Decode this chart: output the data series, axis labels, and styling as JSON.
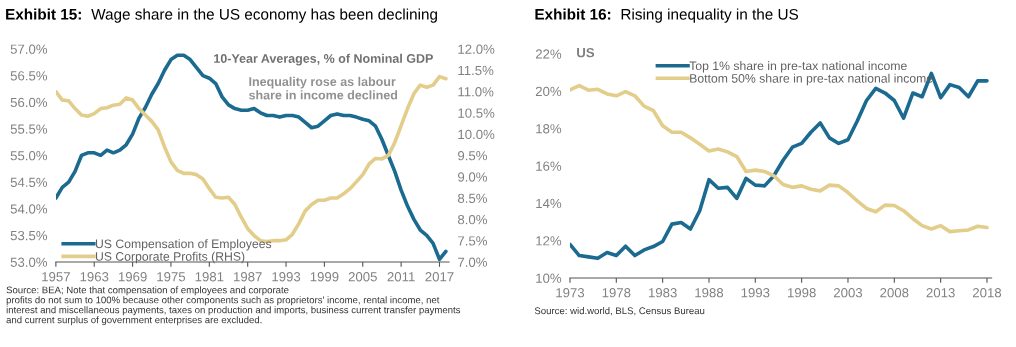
{
  "chart_data": [
    {
      "type": "line",
      "title": "Exhibit 15:  Wage share in the US economy has been declining",
      "annotations": [
        "10-Year Averages, % of Nominal GDP",
        "Inequality rose as labour\nshare in income declined",
        "Source: BEA; Note that compensation of employees and corporate\nprofits do not sum to 100% because other components such as proprietors' income, rental income, net\ninterest and miscellaneous payments, taxes on production and imports, business current transfer payments\nand current surplus of government enterprises are excluded."
      ],
      "x": [
        1957,
        1958,
        1959,
        1960,
        1961,
        1962,
        1963,
        1964,
        1965,
        1966,
        1967,
        1968,
        1969,
        1970,
        1971,
        1972,
        1973,
        1974,
        1975,
        1976,
        1977,
        1978,
        1979,
        1980,
        1981,
        1982,
        1983,
        1984,
        1985,
        1986,
        1987,
        1988,
        1989,
        1990,
        1991,
        1992,
        1993,
        1994,
        1995,
        1996,
        1997,
        1998,
        1999,
        2000,
        2001,
        2002,
        2003,
        2004,
        2005,
        2006,
        2007,
        2008,
        2009,
        2010,
        2011,
        2012,
        2013,
        2014,
        2015,
        2016,
        2017,
        2018
      ],
      "series": [
        {
          "name": "US Compensation of Employees",
          "color": "#1b6a90",
          "values": [
            54.2,
            54.4,
            54.5,
            54.7,
            55.0,
            55.05,
            55.05,
            55.0,
            55.1,
            55.05,
            55.1,
            55.2,
            55.4,
            55.7,
            55.9,
            56.15,
            56.35,
            56.6,
            56.8,
            56.88,
            56.88,
            56.8,
            56.65,
            56.5,
            56.45,
            56.35,
            56.1,
            55.95,
            55.88,
            55.85,
            55.85,
            55.88,
            55.8,
            55.75,
            55.75,
            55.72,
            55.75,
            55.75,
            55.72,
            55.62,
            55.52,
            55.55,
            55.65,
            55.75,
            55.78,
            55.75,
            55.75,
            55.72,
            55.68,
            55.65,
            55.55,
            55.3,
            55.0,
            54.7,
            54.35,
            54.05,
            53.8,
            53.6,
            53.5,
            53.35,
            53.05,
            53.2
          ]
        },
        {
          "name": "US Corporate Profits (RHS)",
          "color": "#e3cd8a",
          "axis": "y2",
          "values": [
            11.0,
            10.8,
            10.78,
            10.6,
            10.45,
            10.42,
            10.48,
            10.6,
            10.62,
            10.68,
            10.7,
            10.85,
            10.8,
            10.6,
            10.45,
            10.3,
            10.1,
            9.7,
            9.35,
            9.15,
            9.08,
            9.08,
            9.05,
            8.95,
            8.72,
            8.52,
            8.5,
            8.52,
            8.35,
            8.05,
            7.78,
            7.62,
            7.5,
            7.48,
            7.5,
            7.5,
            7.52,
            7.65,
            7.9,
            8.2,
            8.35,
            8.45,
            8.45,
            8.5,
            8.5,
            8.6,
            8.72,
            8.88,
            9.05,
            9.3,
            9.43,
            9.42,
            9.5,
            9.8,
            10.2,
            10.6,
            10.95,
            11.15,
            11.1,
            11.15,
            11.35,
            11.3
          ]
        }
      ],
      "xlim": [
        1957,
        2018.5
      ],
      "xticks": [
        1957,
        1963,
        1969,
        1975,
        1981,
        1987,
        1993,
        1999,
        2005,
        2011,
        2017
      ],
      "ylim": [
        53.0,
        57.0
      ],
      "yticks": [
        {
          "value": 53.0,
          "label": "53.0%"
        },
        {
          "value": 53.5,
          "label": "53.5%"
        },
        {
          "value": 54.0,
          "label": "54.0%"
        },
        {
          "value": 54.5,
          "label": "54.5%"
        },
        {
          "value": 55.0,
          "label": "55.0%"
        },
        {
          "value": 55.5,
          "label": "55.5%"
        },
        {
          "value": 56.0,
          "label": "56.0%"
        },
        {
          "value": 56.5,
          "label": "56.5%"
        },
        {
          "value": 57.0,
          "label": "57.0%"
        }
      ],
      "y2lim": [
        7.0,
        12.0
      ],
      "y2ticks": [
        {
          "value": 7.0,
          "label": "7.0%"
        },
        {
          "value": 7.5,
          "label": "7.5%"
        },
        {
          "value": 8.0,
          "label": "8.0%"
        },
        {
          "value": 8.5,
          "label": "8.5%"
        },
        {
          "value": 9.0,
          "label": "9.0%"
        },
        {
          "value": 9.5,
          "label": "9.5%"
        },
        {
          "value": 10.0,
          "label": "10.0%"
        },
        {
          "value": 10.5,
          "label": "10.5%"
        },
        {
          "value": 11.0,
          "label": "11.0%"
        },
        {
          "value": 11.5,
          "label": "11.5%"
        },
        {
          "value": 12.0,
          "label": "12.0%"
        }
      ],
      "grid": false,
      "legend": "bottom left"
    },
    {
      "type": "line",
      "title": "Exhibit 16:  Rising inequality in the US",
      "annotations": [
        "US",
        "Source: wid.world, BLS, Census Bureau"
      ],
      "x": [
        1973,
        1974,
        1975,
        1976,
        1977,
        1978,
        1979,
        1980,
        1981,
        1982,
        1983,
        1984,
        1985,
        1986,
        1987,
        1988,
        1989,
        1990,
        1991,
        1992,
        1993,
        1994,
        1995,
        1996,
        1997,
        1998,
        1999,
        2000,
        2001,
        2002,
        2003,
        2004,
        2005,
        2006,
        2007,
        2008,
        2009,
        2010,
        2011,
        2012,
        2013,
        2014,
        2015,
        2016,
        2017,
        2018
      ],
      "series": [
        {
          "name": "Top 1% share in pre-tax national income",
          "color": "#1b6a90",
          "values": [
            11.8,
            11.2,
            11.13,
            11.05,
            11.36,
            11.2,
            11.7,
            11.2,
            11.5,
            11.68,
            11.95,
            12.88,
            12.97,
            12.62,
            13.6,
            15.26,
            14.8,
            14.85,
            14.26,
            15.33,
            14.97,
            14.93,
            15.47,
            16.3,
            17.0,
            17.2,
            17.8,
            18.3,
            17.5,
            17.2,
            17.4,
            18.4,
            19.5,
            20.15,
            19.9,
            19.5,
            18.55,
            19.9,
            19.7,
            20.95,
            19.65,
            20.35,
            20.2,
            19.7,
            20.55,
            20.55
          ]
        },
        {
          "name": "Bottom 50% share in pre-tax national income",
          "color": "#e3cd8a",
          "values": [
            20.07,
            20.3,
            20.05,
            20.1,
            19.85,
            19.75,
            19.97,
            19.75,
            19.2,
            18.96,
            18.15,
            17.8,
            17.8,
            17.5,
            17.16,
            16.8,
            16.9,
            16.75,
            16.5,
            15.7,
            15.77,
            15.7,
            15.47,
            15.0,
            14.85,
            14.93,
            14.75,
            14.66,
            14.97,
            14.93,
            14.57,
            14.13,
            13.72,
            13.54,
            13.9,
            13.88,
            13.6,
            13.17,
            12.8,
            12.62,
            12.8,
            12.48,
            12.53,
            12.57,
            12.77,
            12.7
          ]
        }
      ],
      "xlim": [
        1973,
        2018.5
      ],
      "xticks": [
        1973,
        1978,
        1983,
        1988,
        1993,
        1998,
        2003,
        2008,
        2013,
        2018
      ],
      "ylim": [
        10,
        22
      ],
      "yticks": [
        {
          "value": 10,
          "label": "10%"
        },
        {
          "value": 12,
          "label": "12%"
        },
        {
          "value": 14,
          "label": "14%"
        },
        {
          "value": 16,
          "label": "16%"
        },
        {
          "value": 18,
          "label": "18%"
        },
        {
          "value": 20,
          "label": "20%"
        },
        {
          "value": 22,
          "label": "22%"
        }
      ],
      "grid": false,
      "legend": "top"
    }
  ]
}
